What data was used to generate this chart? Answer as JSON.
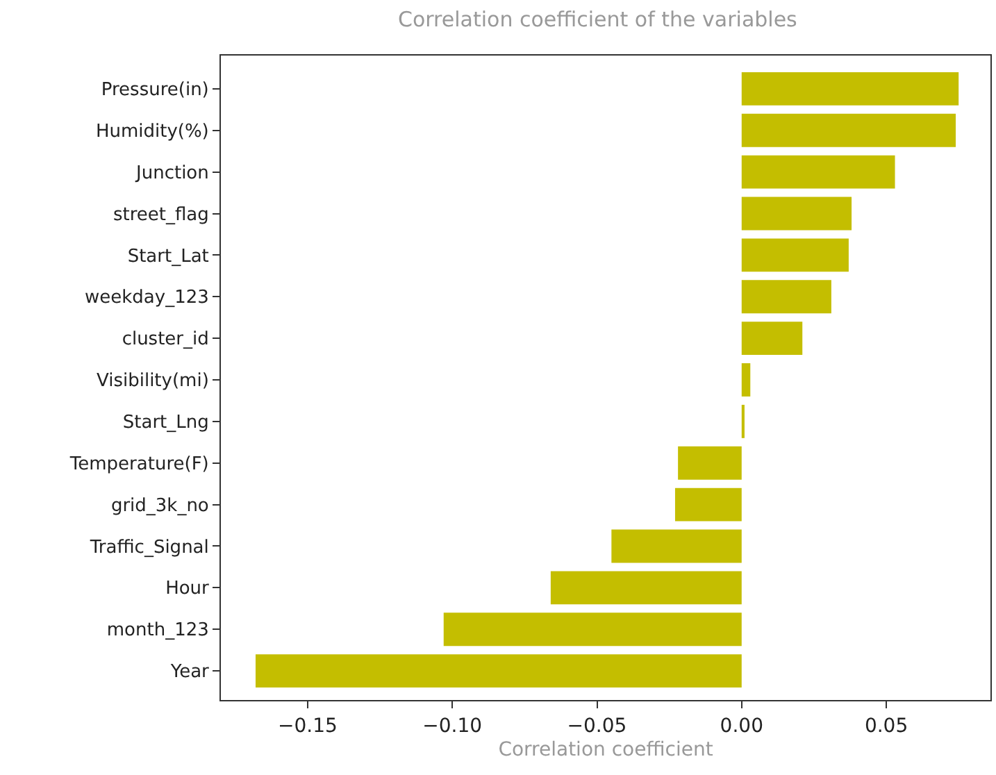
{
  "chart_data": {
    "type": "bar",
    "orientation": "horizontal",
    "title": "Correlation coefficient of the variables",
    "xlabel": "Correlation coefficient",
    "categories": [
      "Pressure(in)",
      "Humidity(%)",
      "Junction",
      "street_flag",
      "Start_Lat",
      "weekday_123",
      "cluster_id",
      "Visibility(mi)",
      "Start_Lng",
      "Temperature(F)",
      "grid_3k_no",
      "Traffic_Signal",
      "Hour",
      "month_123",
      "Year"
    ],
    "values": [
      0.075,
      0.074,
      0.053,
      0.038,
      0.037,
      0.031,
      0.021,
      0.003,
      0.001,
      -0.022,
      -0.023,
      -0.045,
      -0.066,
      -0.103,
      -0.168
    ],
    "color": "#c4be00",
    "xlim": [
      -0.18,
      0.086
    ],
    "xticks": [
      {
        "value": -0.15,
        "label": "−0.15"
      },
      {
        "value": -0.1,
        "label": "−0.10"
      },
      {
        "value": -0.05,
        "label": "−0.05"
      },
      {
        "value": 0,
        "label": "0.00"
      },
      {
        "value": 0.05,
        "label": "0.05"
      }
    ]
  }
}
